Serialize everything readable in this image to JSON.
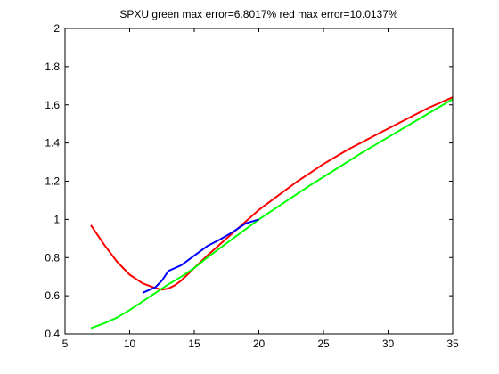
{
  "chart_data": {
    "type": "line",
    "title": "SPXU green max error=6.8017% red max error=10.0137%",
    "xlabel": "",
    "ylabel": "",
    "xlim": [
      5,
      35
    ],
    "ylim": [
      0.4,
      2
    ],
    "xticks": [
      5,
      10,
      15,
      20,
      25,
      30,
      35
    ],
    "yticks": [
      0.4,
      0.6,
      0.8,
      1,
      1.2,
      1.4,
      1.6,
      1.8,
      2
    ],
    "grid": false,
    "legend": "none",
    "series": [
      {
        "color": "#ff0000",
        "x": [
          7,
          8,
          9,
          10,
          11,
          12,
          12.5,
          13,
          13.5,
          14,
          15,
          16,
          17,
          18,
          19,
          20,
          21,
          22,
          23,
          24,
          25,
          26,
          27,
          28,
          29,
          30,
          31,
          32,
          33,
          34,
          35
        ],
        "y": [
          0.97,
          0.87,
          0.78,
          0.71,
          0.665,
          0.64,
          0.632,
          0.638,
          0.655,
          0.68,
          0.745,
          0.81,
          0.87,
          0.93,
          0.99,
          1.05,
          1.1,
          1.15,
          1.2,
          1.245,
          1.29,
          1.33,
          1.37,
          1.405,
          1.44,
          1.475,
          1.51,
          1.545,
          1.58,
          1.61,
          1.64
        ]
      },
      {
        "color": "#00ff00",
        "x": [
          7,
          8,
          9,
          10,
          11,
          12,
          13,
          14,
          15,
          16,
          17,
          18,
          19,
          20,
          22,
          24,
          26,
          28,
          30,
          32,
          34,
          35
        ],
        "y": [
          0.43,
          0.455,
          0.485,
          0.525,
          0.57,
          0.615,
          0.66,
          0.7,
          0.745,
          0.8,
          0.85,
          0.9,
          0.95,
          1.0,
          1.09,
          1.18,
          1.265,
          1.35,
          1.43,
          1.51,
          1.59,
          1.63
        ]
      },
      {
        "color": "#0000ff",
        "x": [
          11,
          11.5,
          12,
          12.5,
          13,
          13.5,
          14,
          15,
          16,
          17,
          18,
          19,
          20
        ],
        "y": [
          0.615,
          0.63,
          0.645,
          0.68,
          0.73,
          0.745,
          0.76,
          0.81,
          0.86,
          0.895,
          0.935,
          0.98,
          1.0
        ]
      }
    ],
    "colors": {
      "axes": "#000000",
      "background": "#ffffff"
    }
  }
}
